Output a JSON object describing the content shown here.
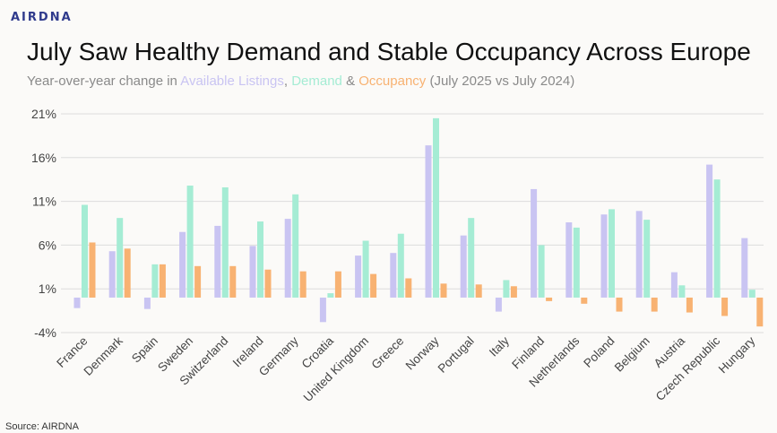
{
  "brand": {
    "logo_text": "AIRDNA"
  },
  "header": {
    "title": "July Saw Healthy Demand and Stable Occupancy Across Europe",
    "subtitle_prefix": "Year-over-year change in ",
    "subtitle_sep1": ", ",
    "subtitle_sep2": " & ",
    "subtitle_suffix": " (July 2025 vs July 2024)"
  },
  "footer": {
    "source": "Source: AIRDNA"
  },
  "colors": {
    "listings": "#c9c4f2",
    "demand": "#a5ecd4",
    "occupancy": "#f8b272",
    "grid": "#dcdcdc",
    "tick_text": "#444444"
  },
  "chart_data": {
    "type": "bar",
    "title": "July Saw Healthy Demand and Stable Occupancy Across Europe",
    "subtitle": "Year-over-year change in Available Listings, Demand & Occupancy (July 2025 vs July 2024)",
    "y_ticks": [
      "21%",
      "16%",
      "11%",
      "6%",
      "1%",
      "-4%"
    ],
    "y_tick_values": [
      21,
      16,
      11,
      6,
      1,
      -4
    ],
    "ylim": [
      -4,
      21
    ],
    "grid": true,
    "categories": [
      "France",
      "Denmark",
      "Spain",
      "Sweden",
      "Switzerland",
      "Ireland",
      "Germany",
      "Croatia",
      "United Kingdom",
      "Greece",
      "Norway",
      "Portugal",
      "Italy",
      "Finland",
      "Netherlands",
      "Poland",
      "Belgium",
      "Austria",
      "Czech Republic",
      "Hungary"
    ],
    "series": [
      {
        "name": "Available Listings",
        "values": [
          -1.2,
          5.3,
          -1.3,
          7.5,
          8.2,
          5.9,
          9.0,
          -2.8,
          4.8,
          5.1,
          17.4,
          7.1,
          -1.6,
          12.4,
          8.6,
          9.5,
          9.9,
          2.9,
          15.2,
          6.8
        ]
      },
      {
        "name": "Demand",
        "values": [
          10.6,
          9.1,
          3.8,
          12.8,
          12.6,
          8.7,
          11.8,
          0.5,
          6.5,
          7.3,
          20.5,
          9.1,
          2.0,
          6.0,
          8.0,
          10.1,
          8.9,
          1.4,
          13.5,
          0.9
        ]
      },
      {
        "name": "Occupancy",
        "values": [
          6.3,
          5.6,
          3.8,
          3.6,
          3.6,
          3.2,
          3.0,
          3.0,
          2.7,
          2.2,
          1.6,
          1.5,
          1.3,
          -0.4,
          -0.7,
          -1.6,
          -1.6,
          -1.7,
          -2.1,
          -3.3
        ]
      }
    ]
  }
}
